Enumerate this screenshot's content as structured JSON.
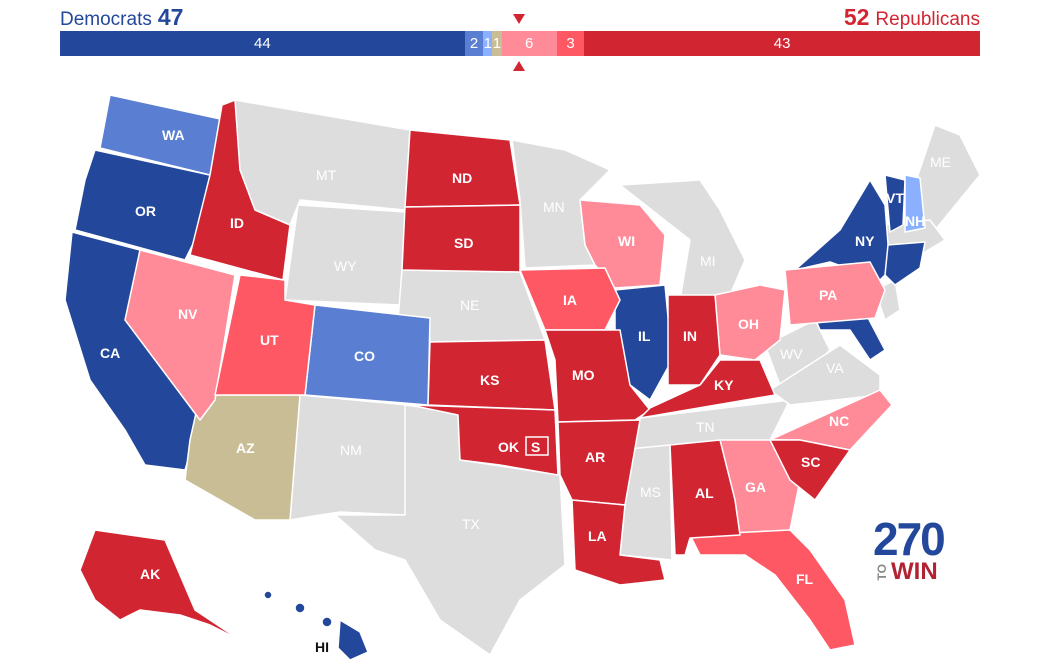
{
  "header": {
    "dem_label": "Democrats",
    "dem_total": "47",
    "rep_total": "52",
    "rep_label": "Republicans"
  },
  "bar": [
    {
      "value": "44",
      "color": "#23479b",
      "seats": 44
    },
    {
      "value": "2",
      "color": "#5a7fd2",
      "seats": 2
    },
    {
      "value": "1",
      "color": "#8ab0ff",
      "seats": 1
    },
    {
      "value": "1",
      "color": "#c8bd95",
      "seats": 1
    },
    {
      "value": "6",
      "color": "#ff8a98",
      "seats": 6
    },
    {
      "value": "3",
      "color": "#ff5865",
      "seats": 3
    },
    {
      "value": "43",
      "color": "#d22532",
      "seats": 43
    }
  ],
  "colors": {
    "safe_dem": "#23479b",
    "likely_dem": "#5a7fd2",
    "lean_dem": "#8ab0ff",
    "tossup": "#c8bd95",
    "lean_rep": "#ff8a98",
    "likely_rep": "#ff5865",
    "safe_rep": "#d22532",
    "no_election": "#dddddd"
  },
  "states": {
    "WA": "WA",
    "OR": "OR",
    "CA": "CA",
    "ID": "ID",
    "NV": "NV",
    "UT": "UT",
    "AZ": "AZ",
    "MT": "MT",
    "WY": "WY",
    "CO": "CO",
    "NM": "NM",
    "ND": "ND",
    "SD": "SD",
    "NE": "NE",
    "KS": "KS",
    "OK": "OK",
    "OK_special": "S",
    "TX": "TX",
    "MN": "MN",
    "IA": "IA",
    "MO": "MO",
    "AR": "AR",
    "LA": "LA",
    "WI": "WI",
    "IL": "IL",
    "MI": "MI",
    "IN": "IN",
    "OH": "OH",
    "KY": "KY",
    "TN": "TN",
    "MS": "MS",
    "AL": "AL",
    "GA": "GA",
    "FL": "FL",
    "SC": "SC",
    "NC": "NC",
    "VA": "VA",
    "WV": "WV",
    "PA": "PA",
    "NY": "NY",
    "VT": "VT",
    "NH": "NH",
    "ME": "ME",
    "AK": "AK",
    "HI": "HI"
  },
  "logo": {
    "top": "270",
    "to": "TO",
    "win": "WIN"
  }
}
